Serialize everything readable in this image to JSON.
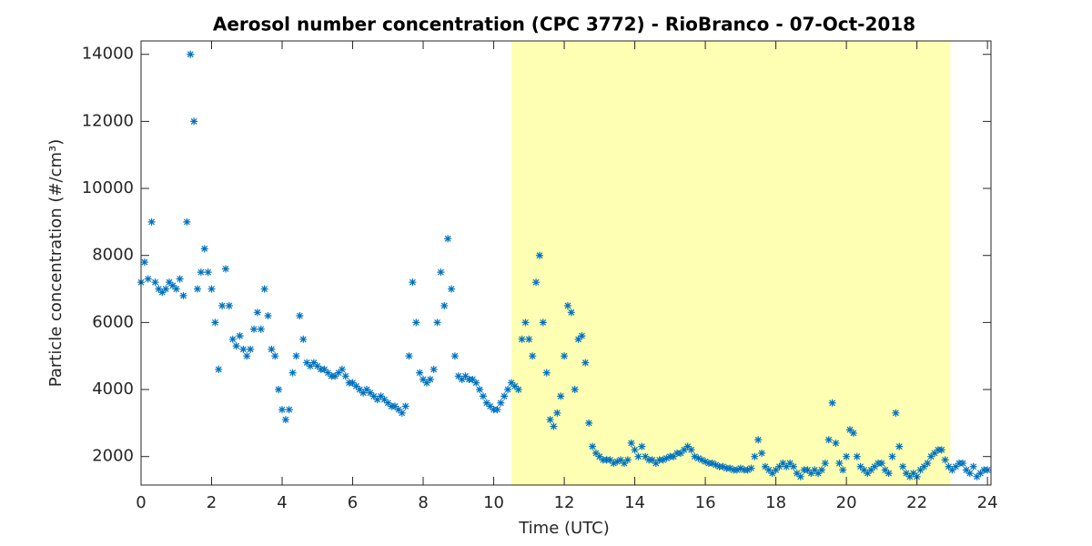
{
  "chart_data": {
    "type": "scatter",
    "title": "Aerosol number concentration (CPC 3772) - RioBranco - 07-Oct-2018",
    "xlabel": "Time (UTC)",
    "ylabel": "Particle concentration (#/cm³)",
    "xlim": [
      0,
      24.1
    ],
    "ylim": [
      1150,
      14400
    ],
    "xticks": [
      0,
      2,
      4,
      6,
      8,
      10,
      12,
      14,
      16,
      18,
      20,
      22,
      24
    ],
    "yticks": [
      2000,
      4000,
      6000,
      8000,
      10000,
      12000,
      14000
    ],
    "grid": false,
    "shaded_region": {
      "x": [
        10.5,
        22.95
      ],
      "color": "#ffffb3"
    },
    "series": [
      {
        "color": "#0072bd",
        "x": [
          0,
          0.1,
          0.2,
          0.3,
          0.4,
          0.5,
          0.6,
          0.7,
          0.8,
          0.9,
          1,
          1.1,
          1.2,
          1.3,
          1.4,
          1.5,
          1.6,
          1.7,
          1.8,
          1.9,
          2,
          2.1,
          2.2,
          2.3,
          2.4,
          2.5,
          2.6,
          2.7,
          2.8,
          2.9,
          3,
          3.1,
          3.2,
          3.3,
          3.4,
          3.5,
          3.6,
          3.7,
          3.8,
          3.9,
          4,
          4.1,
          4.2,
          4.3,
          4.4,
          4.5,
          4.6,
          4.7,
          4.8,
          4.9,
          5,
          5.1,
          5.2,
          5.3,
          5.4,
          5.5,
          5.6,
          5.7,
          5.8,
          5.9,
          6,
          6.1,
          6.2,
          6.3,
          6.4,
          6.5,
          6.6,
          6.7,
          6.8,
          6.9,
          7,
          7.1,
          7.2,
          7.3,
          7.4,
          7.5,
          7.6,
          7.7,
          7.8,
          7.9,
          8,
          8.1,
          8.2,
          8.3,
          8.4,
          8.5,
          8.6,
          8.7,
          8.8,
          8.9,
          9,
          9.1,
          9.2,
          9.3,
          9.4,
          9.5,
          9.6,
          9.7,
          9.8,
          9.9,
          10,
          10.1,
          10.2,
          10.3,
          10.4,
          10.5,
          10.6,
          10.7,
          10.8,
          10.9,
          11,
          11.1,
          11.2,
          11.3,
          11.4,
          11.5,
          11.6,
          11.7,
          11.8,
          11.9,
          12,
          12.1,
          12.2,
          12.3,
          12.4,
          12.5,
          12.6,
          12.7,
          12.8,
          12.9,
          13,
          13.1,
          13.2,
          13.3,
          13.4,
          13.5,
          13.6,
          13.7,
          13.8,
          13.9,
          14,
          14.1,
          14.2,
          14.3,
          14.4,
          14.5,
          14.6,
          14.7,
          14.8,
          14.9,
          15,
          15.1,
          15.2,
          15.3,
          15.4,
          15.5,
          15.6,
          15.7,
          15.8,
          15.9,
          16,
          16.1,
          16.2,
          16.3,
          16.4,
          16.5,
          16.6,
          16.7,
          16.8,
          16.9,
          17,
          17.1,
          17.2,
          17.3,
          17.4,
          17.5,
          17.6,
          17.7,
          17.8,
          17.9,
          18,
          18.1,
          18.2,
          18.3,
          18.4,
          18.5,
          18.6,
          18.7,
          18.8,
          18.9,
          19,
          19.1,
          19.2,
          19.3,
          19.4,
          19.5,
          19.6,
          19.7,
          19.8,
          19.9,
          20,
          20.1,
          20.2,
          20.3,
          20.4,
          20.5,
          20.6,
          20.7,
          20.8,
          20.9,
          21,
          21.1,
          21.2,
          21.3,
          21.4,
          21.5,
          21.6,
          21.7,
          21.8,
          21.9,
          22,
          22.1,
          22.2,
          22.3,
          22.4,
          22.5,
          22.6,
          22.7,
          22.8,
          22.9,
          23,
          23.1,
          23.2,
          23.3,
          23.4,
          23.5,
          23.6,
          23.7,
          23.8,
          23.9,
          24
        ],
        "values": [
          7200,
          7800,
          7300,
          9000,
          7200,
          7000,
          6900,
          7000,
          7200,
          7100,
          7000,
          7300,
          6800,
          9000,
          14000,
          12000,
          7000,
          7500,
          8200,
          7500,
          7000,
          6000,
          4600,
          6500,
          7600,
          6500,
          5500,
          5300,
          5600,
          5200,
          5000,
          5200,
          5800,
          6300,
          5800,
          7000,
          6200,
          5200,
          5000,
          4000,
          3400,
          3100,
          3400,
          4500,
          5000,
          6200,
          5500,
          4800,
          4700,
          4800,
          4700,
          4600,
          4600,
          4500,
          4400,
          4400,
          4500,
          4600,
          4400,
          4200,
          4200,
          4100,
          4000,
          3900,
          4000,
          3900,
          3800,
          3700,
          3800,
          3700,
          3600,
          3500,
          3500,
          3400,
          3300,
          3500,
          5000,
          7200,
          6000,
          4500,
          4300,
          4200,
          4300,
          4600,
          6000,
          7500,
          6500,
          8500,
          7000,
          5000,
          4400,
          4300,
          4400,
          4300,
          4300,
          4200,
          4000,
          3800,
          3600,
          3500,
          3400,
          3400,
          3600,
          3800,
          4000,
          4200,
          4100,
          4000,
          5500,
          6000,
          5500,
          5000,
          7200,
          8000,
          6000,
          4500,
          3100,
          2900,
          3300,
          3800,
          5000,
          6500,
          6300,
          4000,
          5500,
          5600,
          4800,
          3000,
          2300,
          2100,
          2000,
          1900,
          1900,
          1900,
          1800,
          1850,
          1900,
          1800,
          1900,
          2400,
          2200,
          2000,
          2300,
          2000,
          1900,
          1900,
          1800,
          1900,
          1900,
          1950,
          2000,
          2000,
          2100,
          2100,
          2200,
          2300,
          2200,
          2000,
          1950,
          1900,
          1850,
          1800,
          1800,
          1750,
          1700,
          1700,
          1650,
          1650,
          1600,
          1600,
          1650,
          1600,
          1600,
          1650,
          2000,
          2500,
          2100,
          1700,
          1600,
          1500,
          1600,
          1700,
          1800,
          1700,
          1800,
          1700,
          1500,
          1400,
          1600,
          1600,
          1500,
          1600,
          1500,
          1600,
          1800,
          2500,
          3600,
          2400,
          1800,
          1600,
          2000,
          2800,
          2700,
          2000,
          1700,
          1600,
          1500,
          1600,
          1700,
          1800,
          1800,
          1600,
          1500,
          2000,
          3300,
          2300,
          1700,
          1500,
          1400,
          1500,
          1400,
          1600,
          1700,
          1800,
          2000,
          2100,
          2200,
          2200,
          1900,
          1700,
          1600,
          1700,
          1800,
          1800,
          1600,
          1500,
          1700,
          1400,
          1500,
          1600,
          1600
        ]
      }
    ]
  }
}
